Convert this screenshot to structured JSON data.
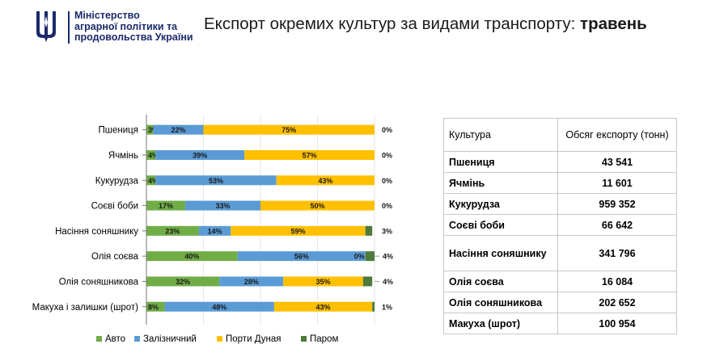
{
  "header": {
    "ministry_lines": [
      "Міністерство",
      "аграрної політики та",
      "продовольства України"
    ],
    "title_prefix": "Експорт окремих культур за видами транспорту:",
    "title_month": "травень"
  },
  "colors": {
    "auto": "#70ad47",
    "rail": "#5b9bd5",
    "danube": "#ffc000",
    "ferry": "#4e7a3a",
    "brand": "#1b2a6b"
  },
  "chart_data": {
    "type": "bar",
    "orientation": "horizontal",
    "stacked": "percent",
    "categories": [
      "Пшениця",
      "Ячмінь",
      "Кукурудза",
      "Соєві боби",
      "Насіння соняшнику",
      "Олія соєва",
      "Олія соняшникова",
      "Макуха і залишки (шрот)"
    ],
    "series": [
      {
        "name": "Авто",
        "values": [
          3,
          4,
          4,
          17,
          23,
          40,
          32,
          8
        ]
      },
      {
        "name": "Залізничний",
        "values": [
          22,
          39,
          53,
          33,
          14,
          56,
          28,
          48
        ]
      },
      {
        "name": "Порти Дуная",
        "values": [
          75,
          57,
          43,
          50,
          59,
          0,
          35,
          43
        ]
      },
      {
        "name": "Паром",
        "values": [
          0,
          0,
          0,
          0,
          3,
          4,
          4,
          1
        ]
      }
    ],
    "xlim": [
      0,
      100
    ],
    "legend": "bottom",
    "grid": true
  },
  "table": {
    "headers": [
      "Культура",
      "Обсяг експорту (тонн)"
    ],
    "rows": [
      [
        "Пшениця",
        "43 541"
      ],
      [
        "Ячмінь",
        "11 601"
      ],
      [
        "Кукурудза",
        "959 352"
      ],
      [
        "Соєві боби",
        "66 642"
      ],
      [
        "Насіння соняшнику",
        "341 796"
      ],
      [
        "Олія соєва",
        "16 084"
      ],
      [
        "Олія соняшникова",
        "202 652"
      ],
      [
        "Макуха (шрот)",
        "100 954"
      ]
    ]
  }
}
